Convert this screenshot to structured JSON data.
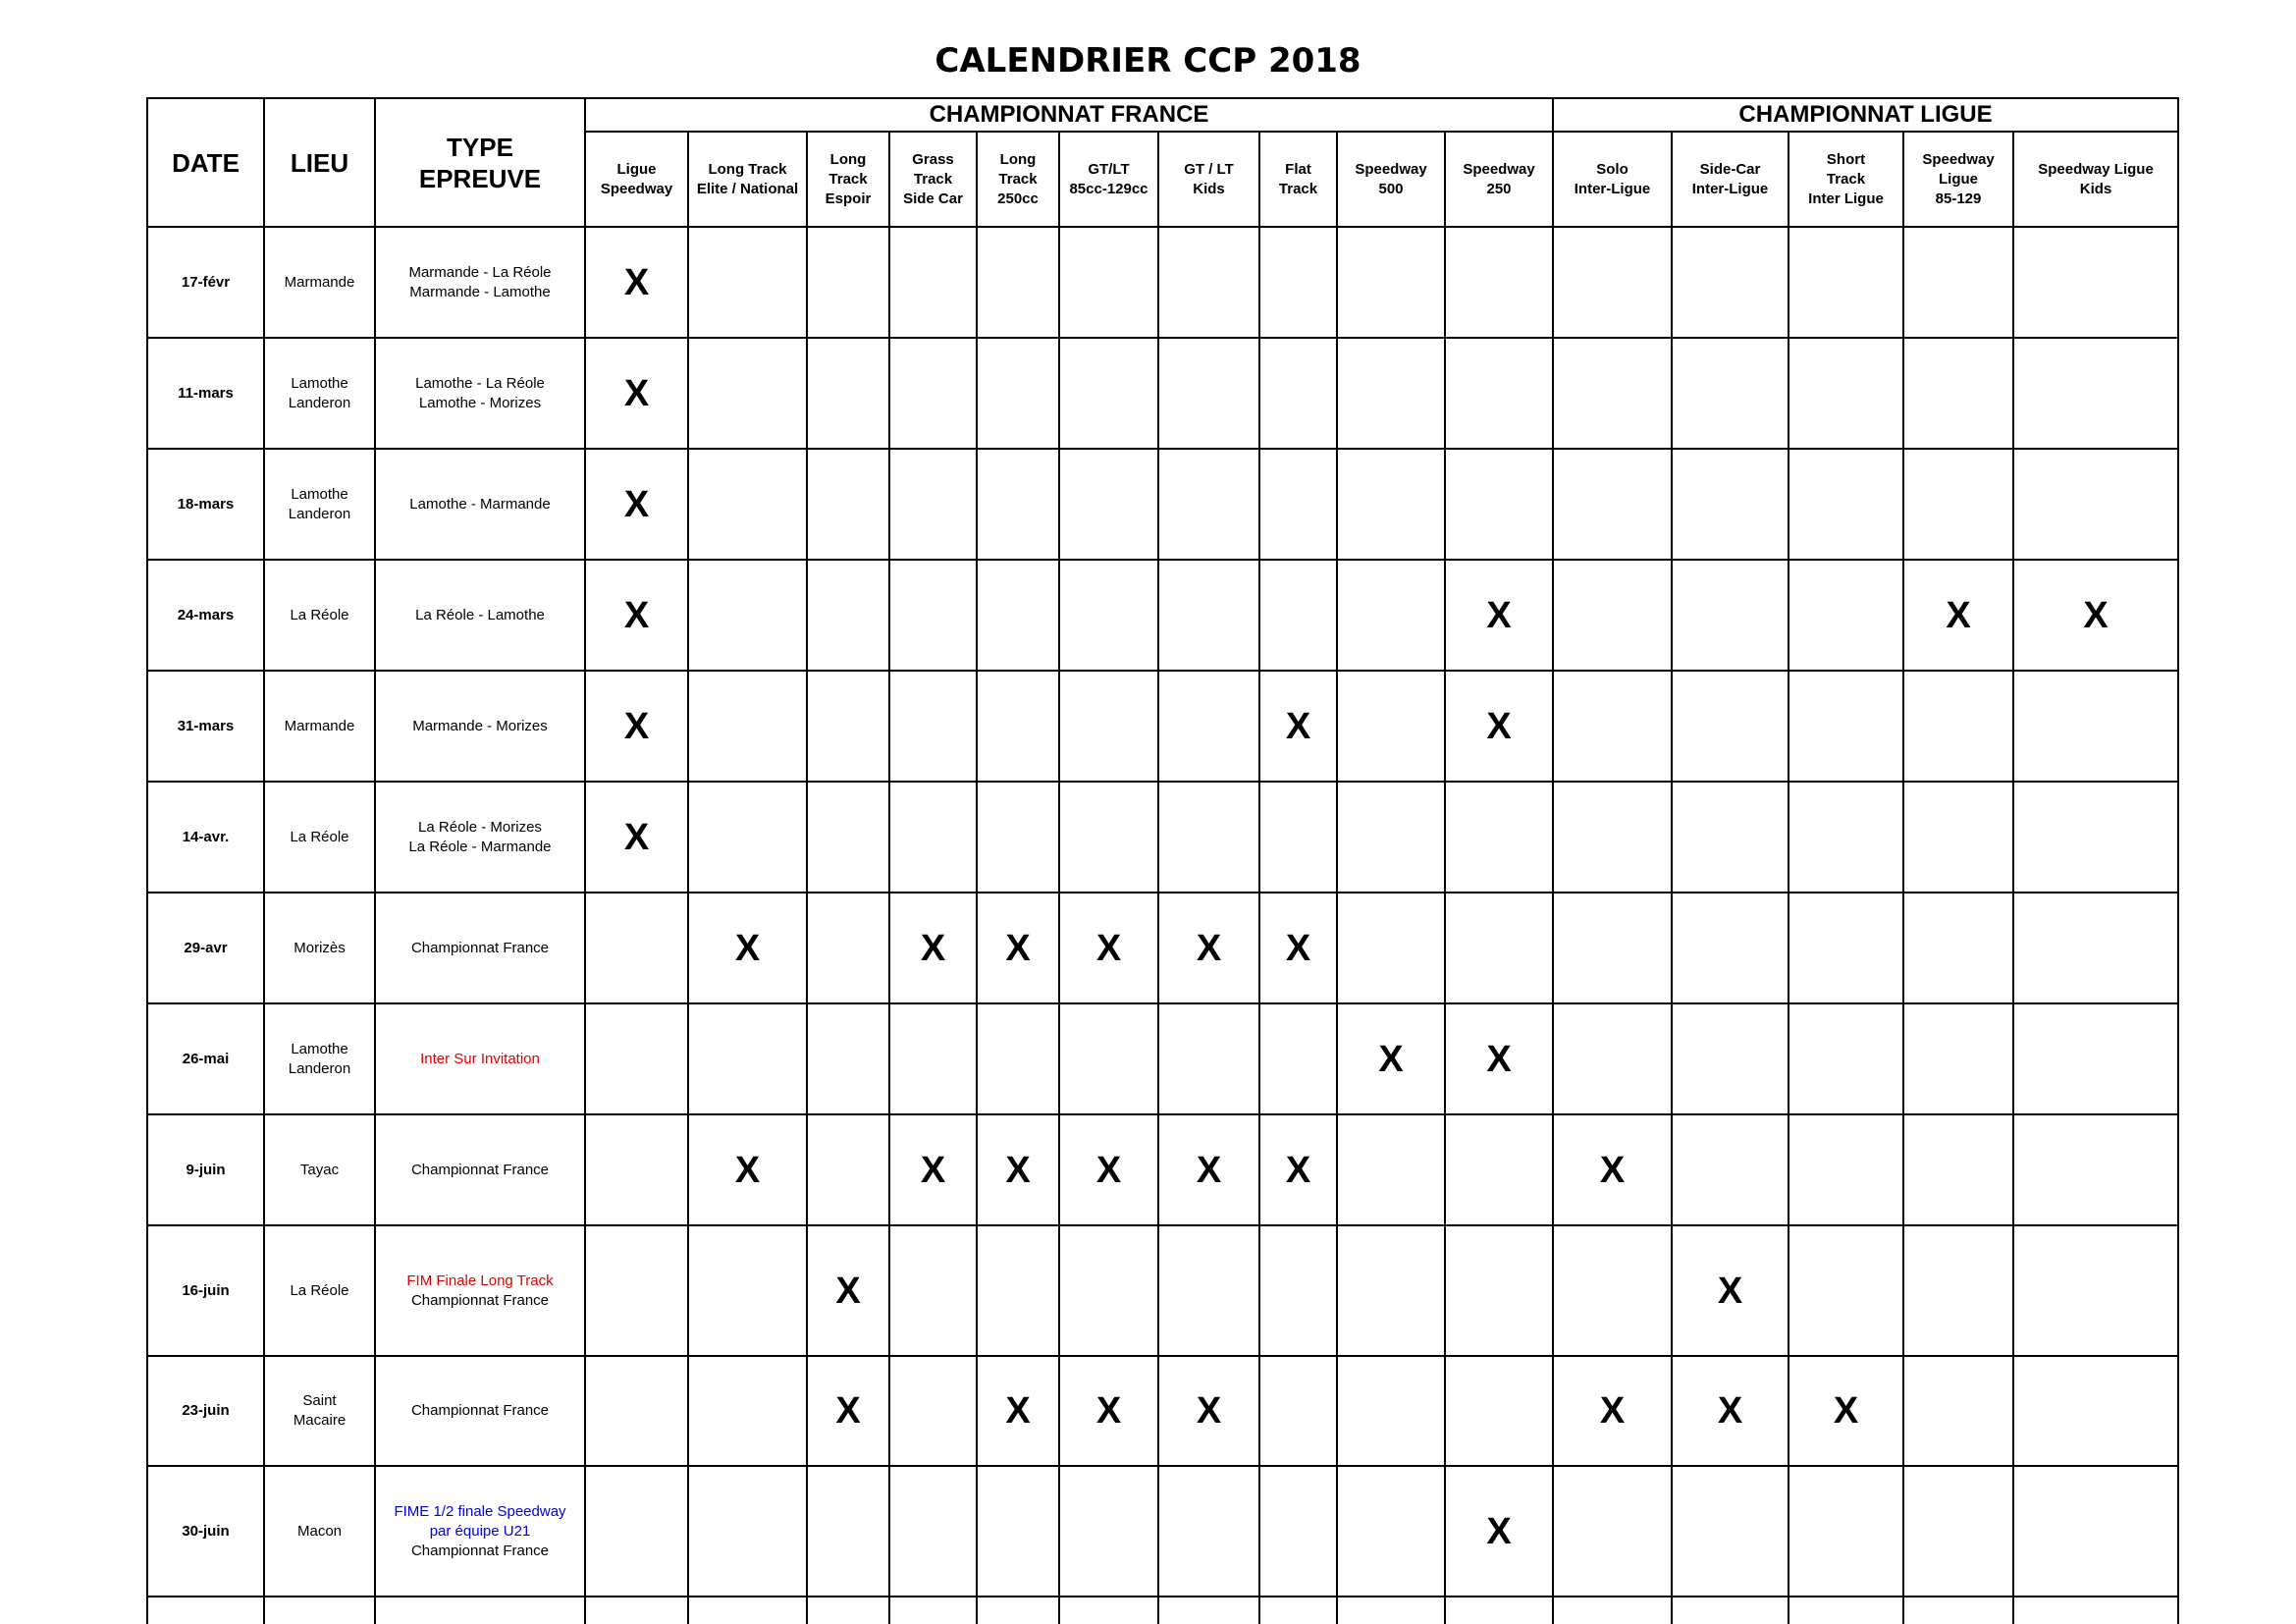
{
  "title": "CALENDRIER CCP 2018",
  "header": {
    "date": "DATE",
    "lieu": "LIEU",
    "type": "TYPE\nEPREUVE",
    "groups": [
      {
        "label": "CHAMPIONNAT FRANCE",
        "span": 10
      },
      {
        "label": "CHAMPIONNAT LIGUE",
        "span": 5
      }
    ],
    "columns": [
      "Ligue\nSpeedway",
      "Long Track\nElite / National",
      "Long\nTrack\nEspoir",
      "Grass\nTrack\nSide Car",
      "Long\nTrack\n250cc",
      "GT/LT\n85cc-129cc",
      "GT / LT\nKids",
      "Flat\nTrack",
      "Speedway\n500",
      "Speedway\n250",
      "Solo\nInter-Ligue",
      "Side-Car\nInter-Ligue",
      "Short\nTrack\nInter Ligue",
      "Speedway\nLigue\n85-129",
      "Speedway Ligue\nKids"
    ]
  },
  "rows": [
    {
      "date": "17-févr",
      "lieu": "Marmande",
      "type": [
        {
          "text": "Marmande - La Réole",
          "color": "#000000"
        },
        {
          "text": "Marmande - Lamothe",
          "color": "#000000"
        }
      ],
      "marks": [
        "X",
        null,
        null,
        null,
        null,
        null,
        null,
        null,
        null,
        null,
        null,
        null,
        null,
        null,
        null
      ]
    },
    {
      "date": "11-mars",
      "lieu": "Lamothe\nLanderon",
      "type": [
        {
          "text": "Lamothe - La Réole",
          "color": "#000000"
        },
        {
          "text": "Lamothe - Morizes",
          "color": "#000000"
        }
      ],
      "marks": [
        "X",
        null,
        null,
        null,
        null,
        null,
        null,
        null,
        null,
        null,
        null,
        null,
        null,
        null,
        null
      ]
    },
    {
      "date": "18-mars",
      "lieu": "Lamothe\nLanderon",
      "type": [
        {
          "text": "Lamothe - Marmande",
          "color": "#000000"
        }
      ],
      "marks": [
        "X",
        null,
        null,
        null,
        null,
        null,
        null,
        null,
        null,
        null,
        null,
        null,
        null,
        null,
        null
      ]
    },
    {
      "date": "24-mars",
      "lieu": "La Réole",
      "type": [
        {
          "text": "La Réole - Lamothe",
          "color": "#000000"
        }
      ],
      "marks": [
        "X",
        null,
        null,
        null,
        null,
        null,
        null,
        null,
        null,
        "X",
        null,
        null,
        null,
        "X",
        "X"
      ]
    },
    {
      "date": "31-mars",
      "lieu": "Marmande",
      "type": [
        {
          "text": "Marmande - Morizes",
          "color": "#000000"
        }
      ],
      "marks": [
        "X",
        null,
        null,
        null,
        null,
        null,
        null,
        "X",
        null,
        "X",
        null,
        null,
        null,
        null,
        null
      ]
    },
    {
      "date": "14-avr.",
      "lieu": "La Réole",
      "type": [
        {
          "text": "La Réole - Morizes",
          "color": "#000000"
        },
        {
          "text": "La Réole - Marmande",
          "color": "#000000"
        }
      ],
      "marks": [
        "X",
        null,
        null,
        null,
        null,
        null,
        null,
        null,
        null,
        null,
        null,
        null,
        null,
        null,
        null
      ]
    },
    {
      "date": "29-avr",
      "lieu": "Morizès",
      "type": [
        {
          "text": "Championnat France",
          "color": "#000000"
        }
      ],
      "marks": [
        null,
        "X",
        null,
        "X",
        "X",
        "X",
        "X",
        "X",
        null,
        null,
        null,
        null,
        null,
        null,
        null
      ]
    },
    {
      "date": "26-mai",
      "lieu": "Lamothe\nLanderon",
      "type": [
        {
          "text": "Inter Sur Invitation",
          "color": "#e00000"
        }
      ],
      "marks": [
        null,
        null,
        null,
        null,
        null,
        null,
        null,
        null,
        "X",
        "X",
        null,
        null,
        null,
        null,
        null
      ]
    },
    {
      "date": "9-juin",
      "lieu": "Tayac",
      "type": [
        {
          "text": "Championnat France",
          "color": "#000000"
        }
      ],
      "marks": [
        null,
        "X",
        null,
        "X",
        "X",
        "X",
        "X",
        "X",
        null,
        null,
        "X",
        null,
        null,
        null,
        null
      ]
    },
    {
      "date": "16-juin",
      "lieu": "La Réole",
      "type": [
        {
          "text": "FIM Finale Long Track",
          "color": "#e00000"
        },
        {
          "text": "Championnat France",
          "color": "#000000"
        }
      ],
      "marks": [
        null,
        null,
        "X",
        null,
        null,
        null,
        null,
        null,
        null,
        null,
        null,
        "X",
        null,
        null,
        null
      ]
    },
    {
      "date": "23-juin",
      "lieu": "Saint\nMacaire",
      "type": [
        {
          "text": "Championnat France",
          "color": "#000000"
        }
      ],
      "marks": [
        null,
        null,
        "X",
        null,
        "X",
        "X",
        "X",
        null,
        null,
        null,
        "X",
        "X",
        "X",
        null,
        null
      ]
    },
    {
      "date": "30-juin",
      "lieu": "Macon",
      "type": [
        {
          "text": "FIME 1/2 finale Speedway\npar équipe U21",
          "color": "#0000e0"
        },
        {
          "text": "Championnat France",
          "color": "#000000"
        }
      ],
      "marks": [
        null,
        null,
        null,
        null,
        null,
        null,
        null,
        null,
        null,
        "X",
        null,
        null,
        null,
        null,
        null
      ]
    }
  ]
}
